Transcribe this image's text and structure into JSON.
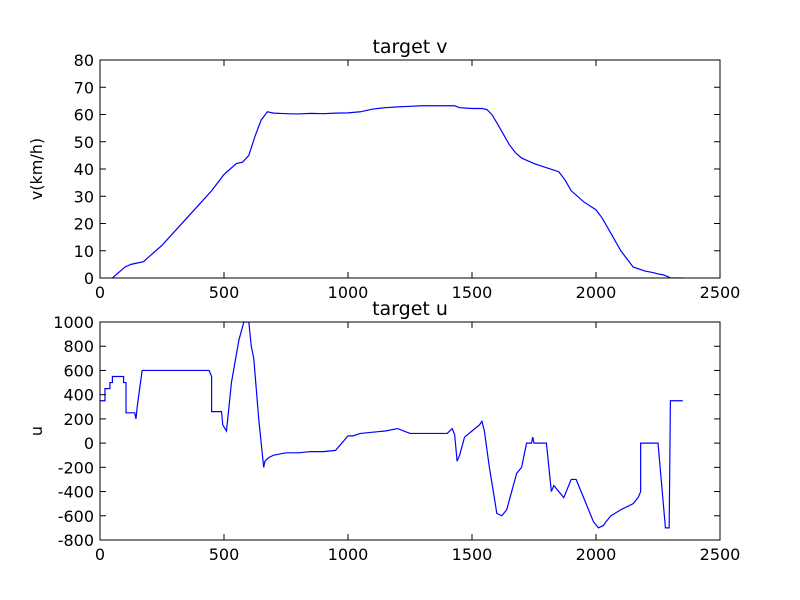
{
  "chart_data": [
    {
      "type": "line",
      "title": "target v",
      "xlabel": "",
      "ylabel": "v(km/h)",
      "xlim": [
        0,
        2500
      ],
      "ylim": [
        0,
        80
      ],
      "xticks": [
        0,
        500,
        1000,
        1500,
        2000,
        2500
      ],
      "yticks": [
        0,
        10,
        20,
        30,
        40,
        50,
        60,
        70,
        80
      ],
      "grid": false,
      "color": "#0000ff",
      "series": [
        {
          "x": [
            50,
            75,
            100,
            125,
            150,
            175,
            200,
            225,
            250,
            300,
            350,
            400,
            450,
            475,
            500,
            525,
            550,
            575,
            600,
            625,
            650,
            675,
            700,
            750,
            800,
            850,
            900,
            950,
            1000,
            1050,
            1100,
            1150,
            1200,
            1250,
            1300,
            1350,
            1400,
            1430,
            1450,
            1500,
            1540,
            1560,
            1580,
            1600,
            1625,
            1650,
            1675,
            1700,
            1750,
            1800,
            1850,
            1875,
            1900,
            1950,
            2000,
            2025,
            2050,
            2075,
            2100,
            2150,
            2200,
            2230,
            2250,
            2270,
            2290,
            2300,
            2320,
            2350
          ],
          "y": [
            0,
            2,
            4,
            5,
            5.5,
            6,
            8,
            10,
            12,
            17,
            22,
            27,
            32,
            35,
            38,
            40,
            42,
            42.5,
            45,
            52,
            58,
            61,
            60.5,
            60.3,
            60.2,
            60.4,
            60.3,
            60.5,
            60.6,
            61,
            62,
            62.5,
            62.8,
            63,
            63.2,
            63.2,
            63.2,
            63.2,
            62.5,
            62.2,
            62.2,
            61.8,
            60,
            57,
            53,
            49,
            46,
            44,
            42,
            40.5,
            39,
            36,
            32,
            28,
            25,
            22,
            18,
            14,
            10,
            4,
            2.5,
            2,
            1.5,
            1.2,
            0.5,
            0,
            0,
            0
          ]
        }
      ]
    },
    {
      "type": "line",
      "title": "target u",
      "xlabel": "",
      "ylabel": "u",
      "xlim": [
        0,
        2500
      ],
      "ylim": [
        -800,
        1000
      ],
      "xticks": [
        0,
        500,
        1000,
        1500,
        2000,
        2500
      ],
      "yticks": [
        -800,
        -600,
        -400,
        -200,
        0,
        200,
        400,
        600,
        800,
        1000
      ],
      "grid": false,
      "color": "#0000ff",
      "series": [
        {
          "x": [
            0,
            20,
            20,
            40,
            40,
            50,
            50,
            95,
            95,
            105,
            105,
            140,
            145,
            150,
            170,
            175,
            440,
            450,
            450,
            490,
            495,
            510,
            515,
            530,
            560,
            580,
            590,
            600,
            610,
            620,
            640,
            660,
            665,
            680,
            700,
            750,
            800,
            850,
            900,
            950,
            1000,
            1020,
            1050,
            1100,
            1150,
            1200,
            1250,
            1300,
            1350,
            1400,
            1420,
            1430,
            1440,
            1450,
            1470,
            1500,
            1530,
            1540,
            1550,
            1570,
            1590,
            1600,
            1620,
            1640,
            1660,
            1680,
            1700,
            1710,
            1720,
            1730,
            1740,
            1745,
            1750,
            1780,
            1800,
            1810,
            1820,
            1830,
            1850,
            1870,
            1900,
            1920,
            1930,
            1950,
            1970,
            1990,
            2010,
            2030,
            2040,
            2060,
            2100,
            2150,
            2170,
            2180,
            2180,
            2200,
            2240,
            2250,
            2280,
            2290,
            2295,
            2300,
            2305,
            2350
          ],
          "y": [
            350,
            350,
            450,
            450,
            500,
            500,
            550,
            550,
            500,
            500,
            250,
            250,
            200,
            300,
            600,
            600,
            600,
            550,
            260,
            260,
            150,
            100,
            200,
            500,
            850,
            1000,
            1000,
            1000,
            800,
            700,
            200,
            -200,
            -150,
            -120,
            -100,
            -80,
            -80,
            -70,
            -70,
            -60,
            60,
            60,
            80,
            90,
            100,
            120,
            80,
            80,
            80,
            80,
            120,
            70,
            -150,
            -100,
            50,
            100,
            150,
            180,
            100,
            -200,
            -450,
            -580,
            -600,
            -550,
            -400,
            -250,
            -200,
            -100,
            0,
            0,
            0,
            50,
            0,
            0,
            0,
            -200,
            -400,
            -350,
            -400,
            -450,
            -300,
            -300,
            -350,
            -450,
            -550,
            -650,
            -700,
            -680,
            -650,
            -600,
            -550,
            -500,
            -450,
            -400,
            0,
            0,
            0,
            0,
            -700,
            -700,
            -700,
            350,
            350,
            350
          ]
        }
      ]
    }
  ]
}
